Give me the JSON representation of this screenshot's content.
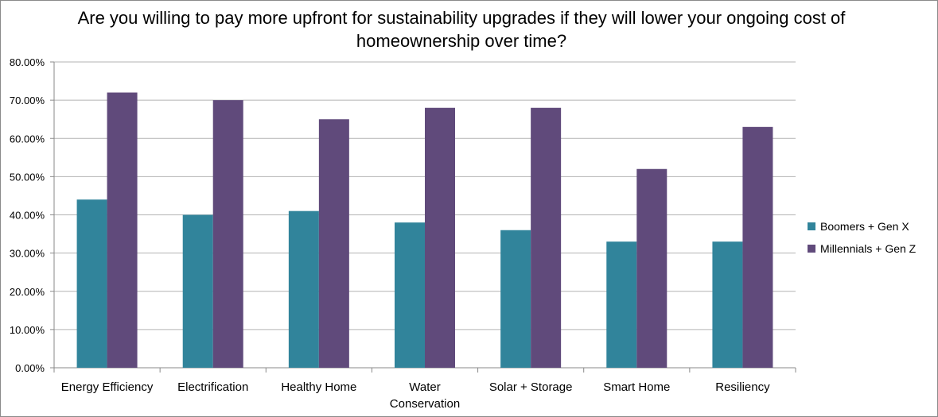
{
  "chart_data": {
    "type": "bar",
    "title": "Are you willing to pay more upfront for sustainability upgrades if they will lower your ongoing cost of homeownership over time?",
    "categories": [
      "Energy Efficiency",
      "Electrification",
      "Healthy Home",
      "Water Conservation",
      "Solar + Storage",
      "Smart Home",
      "Resiliency"
    ],
    "series": [
      {
        "name": "Boomers + Gen X",
        "color": "#31849b",
        "values": [
          0.44,
          0.4,
          0.41,
          0.38,
          0.36,
          0.33,
          0.33
        ]
      },
      {
        "name": "Millennials + Gen Z",
        "color": "#604a7b",
        "values": [
          0.72,
          0.7,
          0.65,
          0.68,
          0.68,
          0.52,
          0.63
        ]
      }
    ],
    "ylim": [
      0,
      0.8
    ],
    "yticks": [
      "0.00%",
      "10.00%",
      "20.00%",
      "30.00%",
      "40.00%",
      "50.00%",
      "60.00%",
      "70.00%",
      "80.00%"
    ],
    "grid": true,
    "legend": "right"
  }
}
